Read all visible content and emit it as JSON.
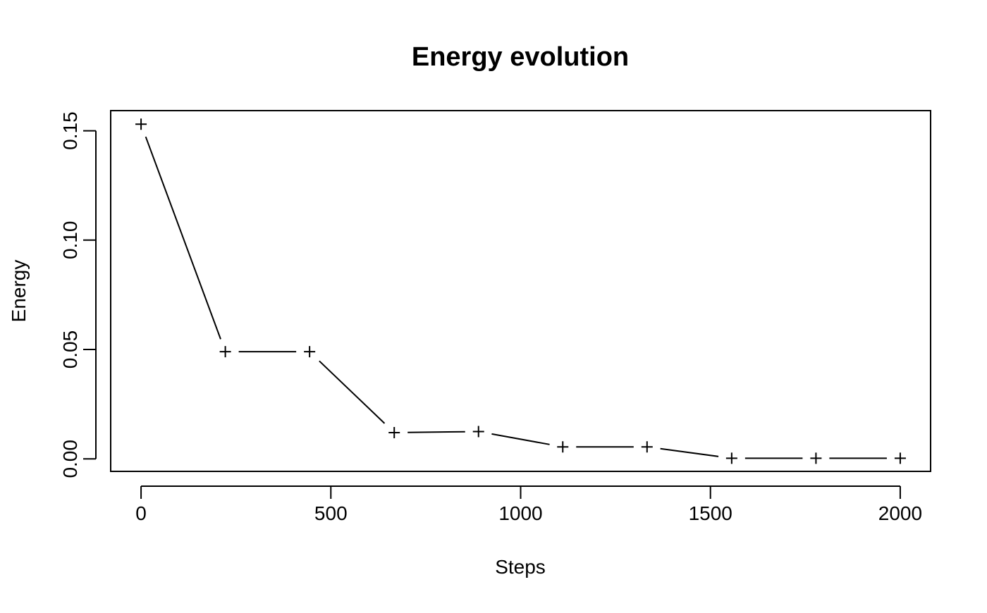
{
  "chart_data": {
    "type": "line",
    "title": "Energy evolution",
    "xlabel": "Steps",
    "ylabel": "Energy",
    "xlim": [
      -80,
      2080
    ],
    "ylim": [
      -0.0057,
      0.1592
    ],
    "xticks": [
      0,
      500,
      1000,
      1500,
      2000
    ],
    "xtick_labels": [
      "0",
      "500",
      "1000",
      "1500",
      "2000"
    ],
    "yticks": [
      0.0,
      0.05,
      0.1,
      0.15
    ],
    "ytick_labels": [
      "0.00",
      "0.05",
      "0.10",
      "0.15"
    ],
    "grid": false,
    "legend": "none",
    "marker": "plus",
    "line_style": "solid-with-gaps",
    "colors": {
      "line": "#000000",
      "marker": "#000000",
      "axes": "#000000"
    },
    "series": [
      {
        "x": [
          0,
          222,
          444,
          667,
          889,
          1111,
          1333,
          1556,
          1778,
          2000
        ],
        "y": [
          0.153,
          0.049,
          0.049,
          0.012,
          0.0125,
          0.0055,
          0.0055,
          0.0003,
          0.0003,
          0.0003
        ]
      }
    ]
  }
}
